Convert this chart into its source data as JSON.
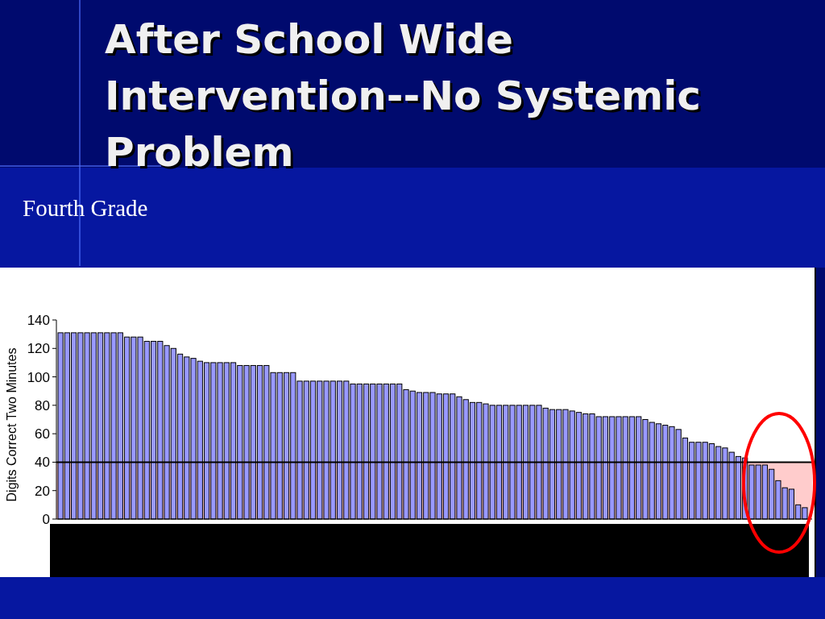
{
  "chart_data": {
    "type": "bar",
    "title": "After School Wide Intervention--No Systemic Problem",
    "subtitle": "Fourth Grade",
    "ylabel": "Digits Correct Two Minutes",
    "categories": [
      null,
      null,
      null,
      null,
      null,
      null,
      null,
      null,
      null,
      null,
      null,
      null,
      null,
      null,
      null,
      null,
      null,
      null,
      null,
      null,
      null,
      null,
      null,
      null,
      null,
      null,
      null,
      null,
      null,
      null,
      null,
      null,
      null,
      null,
      null,
      null,
      null,
      null,
      null,
      null,
      null,
      null,
      null,
      null,
      null,
      null,
      null,
      null,
      null,
      null,
      null,
      null,
      null,
      null,
      null,
      null,
      null,
      null,
      null,
      null,
      null,
      null,
      null,
      null,
      null,
      null,
      null,
      null,
      null,
      null,
      null,
      null,
      null,
      null,
      null,
      null,
      null,
      null,
      null,
      null,
      null,
      null,
      null,
      null,
      null,
      null,
      null,
      null,
      null,
      null,
      null,
      null,
      null,
      null,
      null,
      null,
      null,
      null,
      null,
      null,
      null,
      null,
      null,
      null,
      null,
      null,
      null,
      null,
      null,
      null,
      null,
      null,
      null
    ],
    "values": [
      131,
      131,
      131,
      131,
      131,
      131,
      131,
      131,
      131,
      131,
      128,
      128,
      128,
      125,
      125,
      125,
      122,
      120,
      116,
      114,
      113,
      111,
      110,
      110,
      110,
      110,
      110,
      108,
      108,
      108,
      108,
      108,
      103,
      103,
      103,
      103,
      97,
      97,
      97,
      97,
      97,
      97,
      97,
      97,
      95,
      95,
      95,
      95,
      95,
      95,
      95,
      95,
      91,
      90,
      89,
      89,
      89,
      88,
      88,
      88,
      86,
      84,
      82,
      82,
      81,
      80,
      80,
      80,
      80,
      80,
      80,
      80,
      80,
      78,
      77,
      77,
      77,
      76,
      75,
      74,
      74,
      72,
      72,
      72,
      72,
      72,
      72,
      72,
      70,
      68,
      67,
      66,
      65,
      63,
      57,
      54,
      54,
      54,
      53,
      51,
      50,
      47,
      44,
      43,
      38,
      38,
      38,
      35,
      27,
      22,
      21,
      10,
      8
    ],
    "color": "#9999ff",
    "ylim": [
      0,
      140
    ],
    "yticks": [
      0,
      20,
      40,
      60,
      80,
      100,
      120,
      140
    ],
    "grid": false,
    "ref_lines": [
      {
        "axis": "y",
        "value": 40,
        "color": "#000000"
      }
    ],
    "bands": [
      {
        "axis": "y",
        "from": 0,
        "to": 40,
        "color": "#ffcccc"
      }
    ]
  }
}
